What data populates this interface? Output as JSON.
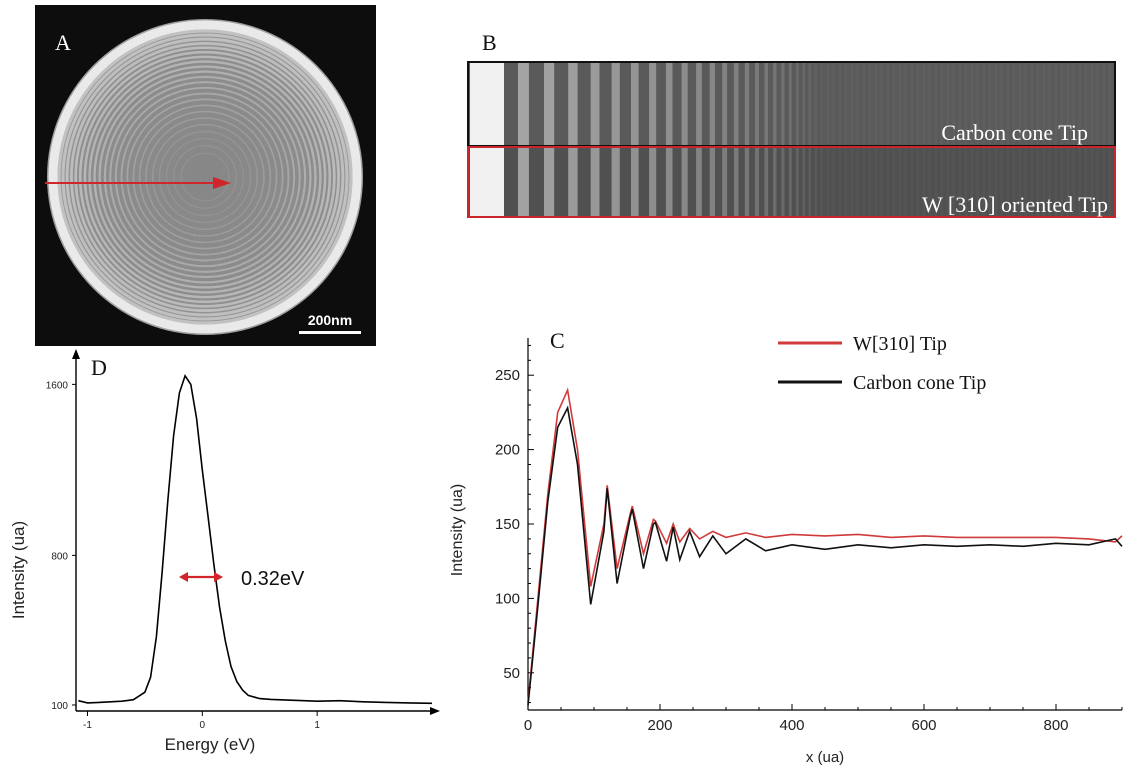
{
  "panel_a": {
    "label": "A",
    "scale_bar": "200nm"
  },
  "panel_b": {
    "label": "B",
    "strip_top_caption": "Carbon cone Tip",
    "strip_bottom_caption": "W [310] oriented Tip",
    "colors": {
      "top_border": "#111111",
      "bottom_border": "#c8262c"
    }
  },
  "chart_data": [
    {
      "panel": "D",
      "type": "line",
      "label": "D",
      "xlabel": "Energy (eV)",
      "ylabel": "Intensity (ua)",
      "xlim": [
        -1.1,
        2.0
      ],
      "ylim": [
        100,
        1700
      ],
      "x_ticks": [
        "-1",
        "0",
        "1"
      ],
      "y_ticks": [
        "100",
        "800",
        "1600"
      ],
      "annotation": "0.32eV",
      "series": [
        {
          "color": "#000000",
          "x": [
            -1.08,
            -1.0,
            -0.9,
            -0.8,
            -0.7,
            -0.6,
            -0.5,
            -0.45,
            -0.4,
            -0.35,
            -0.3,
            -0.25,
            -0.2,
            -0.15,
            -0.1,
            -0.05,
            0.0,
            0.05,
            0.1,
            0.15,
            0.2,
            0.25,
            0.3,
            0.35,
            0.4,
            0.5,
            0.6,
            0.8,
            1.0,
            1.2,
            1.4,
            1.6,
            1.8,
            2.0
          ],
          "y": [
            120,
            110,
            112,
            115,
            118,
            125,
            160,
            230,
            420,
            720,
            1060,
            1360,
            1560,
            1640,
            1600,
            1440,
            1200,
            980,
            760,
            560,
            400,
            280,
            210,
            170,
            145,
            130,
            126,
            122,
            118,
            120,
            115,
            112,
            110,
            108
          ]
        }
      ]
    },
    {
      "panel": "C",
      "type": "line",
      "label": "C",
      "xlabel": "x (ua)",
      "ylabel": "Intensity (ua)",
      "xlim": [
        0,
        900
      ],
      "ylim": [
        25,
        275
      ],
      "x_ticks": [
        "0",
        "200",
        "400",
        "600",
        "800"
      ],
      "y_ticks": [
        "50",
        "100",
        "150",
        "200",
        "250"
      ],
      "legend_position": "top-right",
      "series": [
        {
          "name": "W[310] Tip",
          "color": "#d03a3a",
          "x": [
            0,
            15,
            30,
            45,
            60,
            75,
            95,
            115,
            120,
            135,
            155,
            158,
            175,
            190,
            193,
            210,
            220,
            230,
            245,
            260,
            280,
            300,
            330,
            360,
            400,
            450,
            500,
            550,
            600,
            650,
            700,
            750,
            800,
            850,
            890,
            900
          ],
          "y": [
            30,
            100,
            170,
            225,
            240,
            200,
            108,
            150,
            176,
            120,
            157,
            162,
            130,
            153,
            152,
            137,
            150,
            138,
            147,
            140,
            145,
            141,
            144,
            141,
            143,
            142,
            143,
            141,
            142,
            141,
            141,
            141,
            141,
            140,
            138,
            142
          ]
        },
        {
          "name": "Carbon cone Tip",
          "color": "#111111",
          "x": [
            0,
            15,
            30,
            45,
            60,
            75,
            95,
            115,
            120,
            135,
            155,
            158,
            175,
            190,
            193,
            210,
            220,
            230,
            245,
            260,
            280,
            300,
            330,
            360,
            400,
            450,
            500,
            550,
            600,
            650,
            700,
            750,
            800,
            850,
            890,
            900
          ],
          "y": [
            28,
            95,
            165,
            215,
            228,
            190,
            96,
            145,
            174,
            110,
            155,
            160,
            120,
            150,
            151,
            125,
            148,
            126,
            145,
            128,
            142,
            130,
            140,
            132,
            136,
            133,
            136,
            134,
            136,
            135,
            136,
            135,
            137,
            136,
            140,
            135
          ]
        }
      ]
    }
  ]
}
